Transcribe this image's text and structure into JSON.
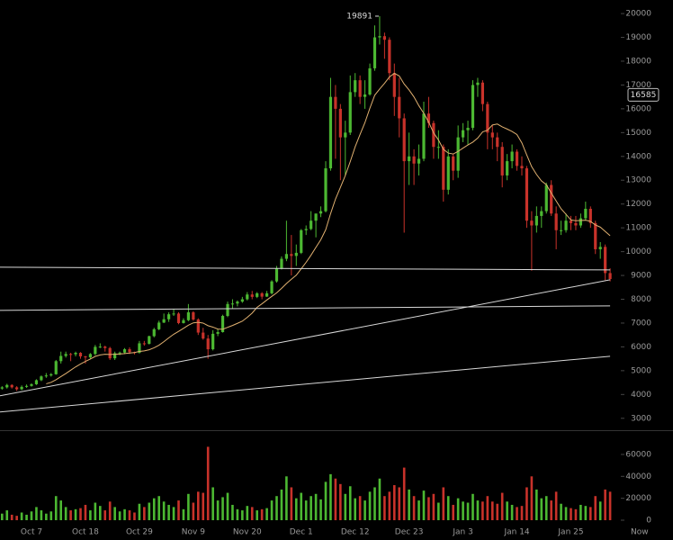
{
  "chart_data": {
    "type": "candlestick",
    "categories": [
      null,
      null,
      null,
      null,
      null,
      null,
      "Oct 7",
      null,
      null,
      null,
      null,
      null,
      null,
      null,
      null,
      null,
      null,
      "Oct 18",
      null,
      null,
      null,
      null,
      null,
      null,
      null,
      null,
      null,
      null,
      "Oct 29",
      null,
      null,
      null,
      null,
      null,
      null,
      null,
      null,
      null,
      null,
      "Nov 9",
      null,
      null,
      null,
      null,
      null,
      null,
      null,
      null,
      null,
      null,
      "Nov 20",
      null,
      null,
      null,
      null,
      null,
      null,
      null,
      null,
      null,
      null,
      "Dec 1",
      null,
      null,
      null,
      null,
      null,
      null,
      null,
      null,
      null,
      null,
      "Dec 12",
      null,
      null,
      null,
      null,
      null,
      null,
      null,
      null,
      null,
      null,
      "Dec 23",
      null,
      null,
      null,
      null,
      null,
      null,
      null,
      null,
      null,
      null,
      "Jan 3",
      null,
      null,
      null,
      null,
      null,
      null,
      null,
      null,
      null,
      null,
      "Jan 14",
      null,
      null,
      null,
      null,
      null,
      null,
      null,
      null,
      null,
      null,
      "Jan 25",
      null,
      null,
      null,
      null,
      null,
      null,
      null,
      null,
      null,
      null,
      null,
      null,
      null,
      "Now"
    ],
    "ohlc": [
      [
        4250,
        4350,
        4200,
        4300
      ],
      [
        4300,
        4450,
        4250,
        4400
      ],
      [
        4400,
        4430,
        4250,
        4300
      ],
      [
        4300,
        4350,
        4150,
        4220
      ],
      [
        4220,
        4380,
        4180,
        4320
      ],
      [
        4320,
        4420,
        4280,
        4360
      ],
      [
        4360,
        4470,
        4330,
        4430
      ],
      [
        4430,
        4640,
        4400,
        4600
      ],
      [
        4600,
        4800,
        4560,
        4760
      ],
      [
        4760,
        4900,
        4700,
        4800
      ],
      [
        4800,
        4900,
        4750,
        4850
      ],
      [
        4850,
        5450,
        4830,
        5400
      ],
      [
        5400,
        5800,
        5300,
        5620
      ],
      [
        5620,
        5800,
        5550,
        5700
      ],
      [
        5700,
        5750,
        5400,
        5690
      ],
      [
        5690,
        5800,
        5600,
        5750
      ],
      [
        5750,
        5780,
        5500,
        5600
      ],
      [
        5600,
        5620,
        5300,
        5560
      ],
      [
        5560,
        5740,
        5500,
        5700
      ],
      [
        5700,
        6080,
        5650,
        6000
      ],
      [
        6000,
        6150,
        5950,
        6010
      ],
      [
        6010,
        6050,
        5800,
        5950
      ],
      [
        5950,
        6000,
        5450,
        5520
      ],
      [
        5520,
        5800,
        5450,
        5730
      ],
      [
        5730,
        5800,
        5650,
        5760
      ],
      [
        5760,
        5950,
        5700,
        5900
      ],
      [
        5900,
        5980,
        5700,
        5780
      ],
      [
        5780,
        5800,
        5680,
        5750
      ],
      [
        5750,
        6250,
        5720,
        6150
      ],
      [
        6150,
        6250,
        6050,
        6130
      ],
      [
        6130,
        6470,
        6100,
        6450
      ],
      [
        6450,
        6800,
        6400,
        6740
      ],
      [
        6740,
        7100,
        6700,
        7020
      ],
      [
        7020,
        7400,
        7000,
        7160
      ],
      [
        7160,
        7450,
        7050,
        7370
      ],
      [
        7370,
        7600,
        7300,
        7400
      ],
      [
        7400,
        7450,
        6950,
        7000
      ],
      [
        7000,
        7200,
        6980,
        7120
      ],
      [
        7120,
        7800,
        7080,
        7450
      ],
      [
        7450,
        7500,
        7100,
        7150
      ],
      [
        7150,
        7200,
        6500,
        6600
      ],
      [
        6600,
        6800,
        6300,
        6350
      ],
      [
        6350,
        6500,
        5500,
        5900
      ],
      [
        5900,
        6700,
        5850,
        6550
      ],
      [
        6550,
        6750,
        6450,
        6620
      ],
      [
        6620,
        7350,
        6600,
        7300
      ],
      [
        7300,
        7900,
        7250,
        7800
      ],
      [
        7800,
        8000,
        7600,
        7820
      ],
      [
        7820,
        7950,
        7700,
        7900
      ],
      [
        7900,
        8100,
        7850,
        8000
      ],
      [
        8000,
        8300,
        7950,
        8200
      ],
      [
        8200,
        8350,
        8000,
        8100
      ],
      [
        8100,
        8300,
        8050,
        8250
      ],
      [
        8250,
        8300,
        8000,
        8110
      ],
      [
        8110,
        8350,
        8100,
        8250
      ],
      [
        8250,
        8800,
        8200,
        8750
      ],
      [
        8750,
        9400,
        8700,
        9300
      ],
      [
        9300,
        9800,
        9250,
        9700
      ],
      [
        9700,
        11300,
        9600,
        9900
      ],
      [
        9900,
        10700,
        9000,
        9820
      ],
      [
        9820,
        10300,
        9400,
        9950
      ],
      [
        9950,
        10950,
        9900,
        10900
      ],
      [
        10900,
        11100,
        10700,
        10950
      ],
      [
        10950,
        11700,
        10900,
        11300
      ],
      [
        11300,
        11600,
        10600,
        11600
      ],
      [
        11600,
        11900,
        11450,
        11700
      ],
      [
        11700,
        13800,
        11650,
        13500
      ],
      [
        13500,
        17300,
        13400,
        16500
      ],
      [
        16500,
        17000,
        13900,
        16000
      ],
      [
        16000,
        16200,
        13000,
        14800
      ],
      [
        14800,
        15500,
        13200,
        15000
      ],
      [
        15000,
        17400,
        14900,
        16700
      ],
      [
        16700,
        17500,
        16500,
        17200
      ],
      [
        17200,
        17400,
        16200,
        16500
      ],
      [
        16500,
        17200,
        16000,
        16600
      ],
      [
        16600,
        17900,
        16550,
        17700
      ],
      [
        17700,
        19500,
        17600,
        19000
      ],
      [
        19000,
        19891,
        18700,
        19050
      ],
      [
        19050,
        19200,
        18100,
        18900
      ],
      [
        18900,
        19000,
        17200,
        17500
      ],
      [
        17500,
        17900,
        15700,
        16500
      ],
      [
        16500,
        17300,
        14800,
        15600
      ],
      [
        15600,
        15800,
        10800,
        13800
      ],
      [
        13800,
        15000,
        12800,
        14000
      ],
      [
        14000,
        14300,
        12800,
        13700
      ],
      [
        13700,
        14500,
        13200,
        13900
      ],
      [
        13900,
        16300,
        13800,
        15800
      ],
      [
        15800,
        16500,
        15200,
        15400
      ],
      [
        15400,
        15500,
        13900,
        14400
      ],
      [
        14400,
        15100,
        13900,
        14400
      ],
      [
        14400,
        14500,
        12100,
        12600
      ],
      [
        12600,
        14300,
        12400,
        14000
      ],
      [
        14000,
        14100,
        13000,
        13400
      ],
      [
        13400,
        15300,
        13100,
        14800
      ],
      [
        14800,
        15400,
        14600,
        15100
      ],
      [
        15100,
        15500,
        14500,
        15200
      ],
      [
        15200,
        17200,
        15100,
        17000
      ],
      [
        17000,
        17300,
        16500,
        17100
      ],
      [
        17100,
        17200,
        15900,
        16200
      ],
      [
        16200,
        16300,
        14300,
        15000
      ],
      [
        15000,
        15300,
        14300,
        14800
      ],
      [
        14800,
        15000,
        13800,
        14400
      ],
      [
        14400,
        14600,
        12700,
        13200
      ],
      [
        13200,
        14100,
        13000,
        13800
      ],
      [
        13800,
        14500,
        13500,
        14200
      ],
      [
        14200,
        14300,
        13400,
        13600
      ],
      [
        13600,
        14000,
        13200,
        13500
      ],
      [
        13500,
        13600,
        11000,
        11300
      ],
      [
        11300,
        11700,
        9200,
        11100
      ],
      [
        11100,
        11900,
        10800,
        11500
      ],
      [
        11500,
        11900,
        11000,
        11700
      ],
      [
        11700,
        12900,
        11600,
        12800
      ],
      [
        12800,
        13000,
        11500,
        11600
      ],
      [
        11600,
        11900,
        10100,
        10900
      ],
      [
        10900,
        11300,
        10700,
        10900
      ],
      [
        10900,
        11600,
        10800,
        11300
      ],
      [
        11300,
        11500,
        10900,
        11200
      ],
      [
        11200,
        11500,
        10900,
        11100
      ],
      [
        11100,
        11600,
        11000,
        11400
      ],
      [
        11400,
        12100,
        11300,
        11800
      ],
      [
        11800,
        11900,
        11000,
        11200
      ],
      [
        11200,
        11300,
        9900,
        10100
      ],
      [
        10100,
        10400,
        9700,
        10200
      ],
      [
        10200,
        10300,
        8800,
        9100
      ],
      [
        9100,
        9300,
        8750,
        8850
      ],
      null,
      null,
      null,
      null,
      null,
      null
    ],
    "volume": [
      6000,
      9000,
      5000,
      4000,
      7000,
      5000,
      8000,
      12000,
      9000,
      6000,
      8000,
      22000,
      18000,
      12000,
      9000,
      10000,
      11000,
      14000,
      9000,
      16000,
      13000,
      9000,
      17000,
      12000,
      8000,
      10000,
      9000,
      7000,
      15000,
      12000,
      16000,
      20000,
      22000,
      17000,
      14000,
      12000,
      18000,
      10000,
      24000,
      16000,
      26000,
      25000,
      67000,
      30000,
      18000,
      21000,
      25000,
      14000,
      10000,
      9000,
      13000,
      12000,
      9000,
      10000,
      11000,
      18000,
      22000,
      28000,
      40000,
      30000,
      20000,
      25000,
      18000,
      22000,
      24000,
      19000,
      35000,
      42000,
      38000,
      33000,
      24000,
      31000,
      20000,
      22000,
      18000,
      26000,
      30000,
      38000,
      22000,
      26000,
      32000,
      30000,
      48000,
      28000,
      22000,
      18000,
      27000,
      21000,
      24000,
      16000,
      30000,
      22000,
      14000,
      20000,
      17000,
      16000,
      24000,
      18000,
      17000,
      22000,
      17000,
      15000,
      25000,
      17000,
      14000,
      12000,
      13000,
      30000,
      40000,
      28000,
      20000,
      22000,
      18000,
      26000,
      15000,
      12000,
      11000,
      10000,
      14000,
      13000,
      12000,
      22000,
      17000,
      28000,
      26000,
      null,
      null,
      null,
      null,
      null,
      null
    ],
    "ma": [
      null,
      null,
      null,
      null,
      null,
      null,
      null,
      null,
      null,
      4450,
      4510,
      4620,
      4750,
      4880,
      5020,
      5160,
      5280,
      5390,
      5490,
      5600,
      5660,
      5690,
      5680,
      5690,
      5700,
      5720,
      5740,
      5760,
      5810,
      5830,
      5880,
      5960,
      6070,
      6220,
      6380,
      6530,
      6650,
      6780,
      6910,
      7010,
      7030,
      7000,
      6890,
      6830,
      6750,
      6740,
      6820,
      6900,
      6990,
      7080,
      7240,
      7420,
      7660,
      7810,
      7970,
      8120,
      8270,
      8460,
      8660,
      8840,
      9010,
      9280,
      9550,
      9850,
      10180,
      10500,
      10920,
      11600,
      12210,
      12700,
      13200,
      13780,
      14400,
      14920,
      15420,
      16020,
      16570,
      16830,
      17070,
      17340,
      17490,
      17380,
      17040,
      16790,
      16500,
      16130,
      15810,
      15440,
      14990,
      14690,
      14300,
      14140,
      14100,
      14210,
      14350,
      14480,
      14600,
      14770,
      15030,
      15100,
      15320,
      15360,
      15240,
      15150,
      15050,
      14920,
      14570,
      14060,
      13570,
      13240,
      12970,
      12810,
      12460,
      12130,
      11800,
      11570,
      11330,
      11300,
      11310,
      11320,
      11270,
      11120,
      11030,
      10850,
      10670,
      null,
      null,
      null,
      null,
      null,
      null
    ],
    "trendlines": [
      [
        9346,
        9233
      ],
      [
        7533,
        7722
      ],
      [
        3944,
        8817
      ],
      [
        3264,
        5606
      ]
    ],
    "up_color": "#4cb832",
    "down_color": "#c8322a",
    "ma_color": "#e0b070",
    "trendline_color": "#d8d8d8",
    "ylim": [
      2500,
      20570
    ],
    "yticks": [
      3000,
      4000,
      5000,
      6000,
      7000,
      8000,
      9000,
      10000,
      11000,
      12000,
      13000,
      14000,
      15000,
      16000,
      17000,
      18000,
      19000,
      20000
    ],
    "vlim": [
      0,
      80000
    ],
    "vticks": [
      0,
      20000,
      40000,
      60000
    ],
    "high_label": 19891,
    "price_marker": 16585
  }
}
